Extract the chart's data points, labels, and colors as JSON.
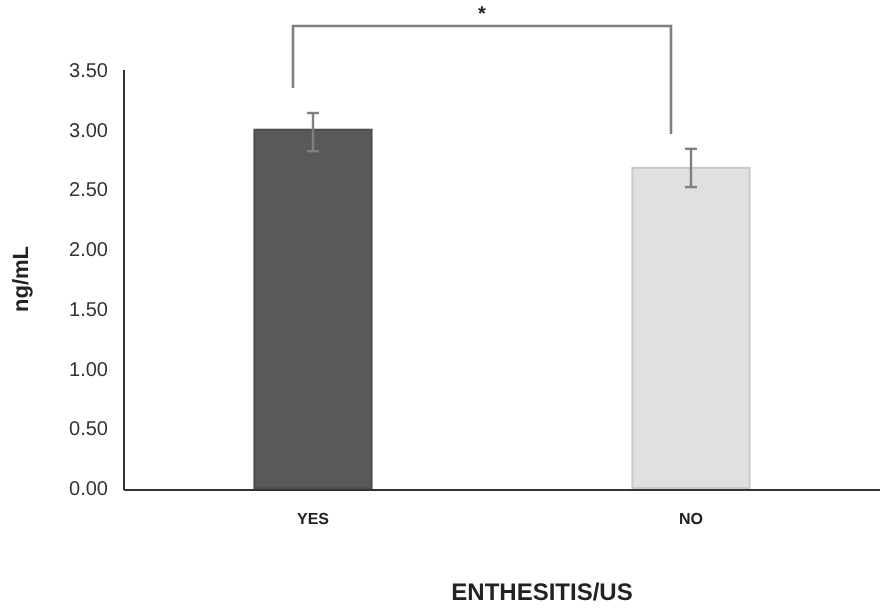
{
  "chart_data": {
    "type": "bar",
    "xlabel": "ENTHESITIS/US",
    "ylabel": "ng/mL",
    "categories": [
      "YES",
      "NO"
    ],
    "values": [
      3.0,
      2.68
    ],
    "colors": [
      "#595959",
      "#e0e0e0"
    ],
    "errors": [
      [
        2.82,
        3.14
      ],
      [
        2.52,
        2.84
      ]
    ],
    "ylim": [
      0,
      3.5
    ],
    "yticks": [
      {
        "value": 0,
        "label": "0.00"
      },
      {
        "value": 0.5,
        "label": "0.50"
      },
      {
        "value": 1,
        "label": "1.00"
      },
      {
        "value": 1.5,
        "label": "1.50"
      },
      {
        "value": 2,
        "label": "2.00"
      },
      {
        "value": 2.5,
        "label": "2.50"
      },
      {
        "value": 3,
        "label": "3.00"
      },
      {
        "value": 3.5,
        "label": "3.50"
      }
    ],
    "grid": false,
    "annotations": [
      "*"
    ]
  }
}
